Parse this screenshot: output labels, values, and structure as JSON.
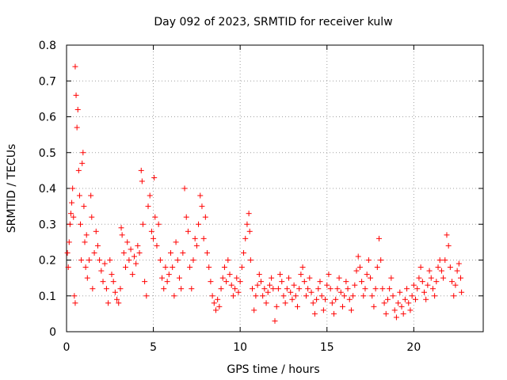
{
  "chart_data": {
    "type": "scatter",
    "title": "Day 092 of 2023, SRMTID for receiver kulw",
    "xlabel": "GPS time / hours",
    "ylabel": "SRMTID / TECUs",
    "xlim": [
      0,
      24
    ],
    "ylim": [
      0,
      0.8
    ],
    "xticks": [
      0,
      5,
      10,
      15,
      20
    ],
    "xtick_labels": [
      "0",
      "5",
      "10",
      "15",
      "20"
    ],
    "yticks": [
      0,
      0.1,
      0.2,
      0.3,
      0.4,
      0.5,
      0.6,
      0.7,
      0.8
    ],
    "ytick_labels": [
      "0",
      "0.1",
      "0.2",
      "0.3",
      "0.4",
      "0.5",
      "0.6",
      "0.7",
      "0.8"
    ],
    "grid": true,
    "marker": "+",
    "color": "#ff0000",
    "series": [
      {
        "name": "SRMTID",
        "points": [
          [
            0.05,
            0.22
          ],
          [
            0.1,
            0.18
          ],
          [
            0.15,
            0.25
          ],
          [
            0.2,
            0.3
          ],
          [
            0.25,
            0.33
          ],
          [
            0.3,
            0.36
          ],
          [
            0.35,
            0.4
          ],
          [
            0.4,
            0.32
          ],
          [
            0.45,
            0.1
          ],
          [
            0.5,
            0.08
          ],
          [
            0.5,
            0.74
          ],
          [
            0.55,
            0.66
          ],
          [
            0.6,
            0.57
          ],
          [
            0.65,
            0.62
          ],
          [
            0.7,
            0.45
          ],
          [
            0.75,
            0.38
          ],
          [
            0.8,
            0.3
          ],
          [
            0.85,
            0.2
          ],
          [
            0.9,
            0.47
          ],
          [
            0.95,
            0.5
          ],
          [
            1.0,
            0.35
          ],
          [
            1.05,
            0.25
          ],
          [
            1.1,
            0.18
          ],
          [
            1.15,
            0.27
          ],
          [
            1.2,
            0.15
          ],
          [
            1.3,
            0.2
          ],
          [
            1.4,
            0.38
          ],
          [
            1.45,
            0.32
          ],
          [
            1.5,
            0.12
          ],
          [
            1.6,
            0.22
          ],
          [
            1.7,
            0.28
          ],
          [
            1.8,
            0.24
          ],
          [
            1.9,
            0.2
          ],
          [
            2.0,
            0.17
          ],
          [
            2.1,
            0.14
          ],
          [
            2.2,
            0.19
          ],
          [
            2.3,
            0.12
          ],
          [
            2.4,
            0.08
          ],
          [
            2.5,
            0.2
          ],
          [
            2.6,
            0.16
          ],
          [
            2.7,
            0.14
          ],
          [
            2.8,
            0.11
          ],
          [
            2.9,
            0.09
          ],
          [
            3.0,
            0.08
          ],
          [
            3.1,
            0.12
          ],
          [
            3.15,
            0.29
          ],
          [
            3.2,
            0.27
          ],
          [
            3.3,
            0.22
          ],
          [
            3.4,
            0.18
          ],
          [
            3.5,
            0.25
          ],
          [
            3.6,
            0.2
          ],
          [
            3.7,
            0.23
          ],
          [
            3.8,
            0.16
          ],
          [
            3.9,
            0.21
          ],
          [
            4.0,
            0.19
          ],
          [
            4.1,
            0.24
          ],
          [
            4.2,
            0.22
          ],
          [
            4.3,
            0.45
          ],
          [
            4.35,
            0.42
          ],
          [
            4.4,
            0.3
          ],
          [
            4.5,
            0.14
          ],
          [
            4.6,
            0.1
          ],
          [
            4.7,
            0.35
          ],
          [
            4.8,
            0.38
          ],
          [
            4.9,
            0.28
          ],
          [
            5.0,
            0.26
          ],
          [
            5.05,
            0.43
          ],
          [
            5.1,
            0.32
          ],
          [
            5.2,
            0.24
          ],
          [
            5.3,
            0.3
          ],
          [
            5.4,
            0.2
          ],
          [
            5.5,
            0.15
          ],
          [
            5.6,
            0.12
          ],
          [
            5.7,
            0.18
          ],
          [
            5.8,
            0.14
          ],
          [
            5.9,
            0.16
          ],
          [
            6.0,
            0.22
          ],
          [
            6.1,
            0.18
          ],
          [
            6.2,
            0.1
          ],
          [
            6.3,
            0.25
          ],
          [
            6.4,
            0.2
          ],
          [
            6.5,
            0.15
          ],
          [
            6.6,
            0.12
          ],
          [
            6.7,
            0.22
          ],
          [
            6.8,
            0.4
          ],
          [
            6.9,
            0.32
          ],
          [
            7.0,
            0.28
          ],
          [
            7.1,
            0.18
          ],
          [
            7.2,
            0.12
          ],
          [
            7.3,
            0.2
          ],
          [
            7.4,
            0.26
          ],
          [
            7.5,
            0.24
          ],
          [
            7.6,
            0.3
          ],
          [
            7.7,
            0.38
          ],
          [
            7.8,
            0.35
          ],
          [
            7.9,
            0.26
          ],
          [
            8.0,
            0.32
          ],
          [
            8.1,
            0.22
          ],
          [
            8.2,
            0.18
          ],
          [
            8.3,
            0.14
          ],
          [
            8.4,
            0.1
          ],
          [
            8.5,
            0.08
          ],
          [
            8.6,
            0.06
          ],
          [
            8.7,
            0.09
          ],
          [
            8.8,
            0.07
          ],
          [
            8.9,
            0.12
          ],
          [
            9.0,
            0.15
          ],
          [
            9.1,
            0.18
          ],
          [
            9.2,
            0.14
          ],
          [
            9.3,
            0.2
          ],
          [
            9.4,
            0.16
          ],
          [
            9.5,
            0.13
          ],
          [
            9.6,
            0.1
          ],
          [
            9.7,
            0.12
          ],
          [
            9.8,
            0.15
          ],
          [
            9.9,
            0.11
          ],
          [
            10.0,
            0.14
          ],
          [
            10.1,
            0.18
          ],
          [
            10.2,
            0.22
          ],
          [
            10.3,
            0.26
          ],
          [
            10.4,
            0.3
          ],
          [
            10.5,
            0.33
          ],
          [
            10.55,
            0.28
          ],
          [
            10.6,
            0.2
          ],
          [
            10.7,
            0.12
          ],
          [
            10.8,
            0.06
          ],
          [
            10.9,
            0.1
          ],
          [
            11.0,
            0.13
          ],
          [
            11.1,
            0.16
          ],
          [
            11.2,
            0.14
          ],
          [
            11.3,
            0.1
          ],
          [
            11.4,
            0.12
          ],
          [
            11.5,
            0.08
          ],
          [
            11.6,
            0.11
          ],
          [
            11.7,
            0.13
          ],
          [
            11.8,
            0.15
          ],
          [
            11.9,
            0.12
          ],
          [
            12.0,
            0.03
          ],
          [
            12.1,
            0.07
          ],
          [
            12.2,
            0.12
          ],
          [
            12.3,
            0.16
          ],
          [
            12.4,
            0.14
          ],
          [
            12.5,
            0.1
          ],
          [
            12.6,
            0.08
          ],
          [
            12.7,
            0.12
          ],
          [
            12.8,
            0.15
          ],
          [
            12.9,
            0.11
          ],
          [
            13.0,
            0.09
          ],
          [
            13.1,
            0.13
          ],
          [
            13.2,
            0.1
          ],
          [
            13.3,
            0.07
          ],
          [
            13.4,
            0.12
          ],
          [
            13.5,
            0.16
          ],
          [
            13.6,
            0.18
          ],
          [
            13.7,
            0.14
          ],
          [
            13.8,
            0.1
          ],
          [
            13.9,
            0.12
          ],
          [
            14.0,
            0.15
          ],
          [
            14.1,
            0.11
          ],
          [
            14.2,
            0.08
          ],
          [
            14.3,
            0.05
          ],
          [
            14.4,
            0.09
          ],
          [
            14.5,
            0.12
          ],
          [
            14.6,
            0.14
          ],
          [
            14.7,
            0.1
          ],
          [
            14.8,
            0.06
          ],
          [
            14.9,
            0.09
          ],
          [
            15.0,
            0.13
          ],
          [
            15.1,
            0.16
          ],
          [
            15.2,
            0.12
          ],
          [
            15.3,
            0.08
          ],
          [
            15.4,
            0.05
          ],
          [
            15.5,
            0.09
          ],
          [
            15.6,
            0.12
          ],
          [
            15.7,
            0.15
          ],
          [
            15.8,
            0.11
          ],
          [
            15.9,
            0.07
          ],
          [
            16.0,
            0.1
          ],
          [
            16.1,
            0.14
          ],
          [
            16.2,
            0.12
          ],
          [
            16.3,
            0.09
          ],
          [
            16.4,
            0.06
          ],
          [
            16.5,
            0.1
          ],
          [
            16.6,
            0.13
          ],
          [
            16.7,
            0.17
          ],
          [
            16.8,
            0.21
          ],
          [
            16.9,
            0.18
          ],
          [
            17.0,
            0.14
          ],
          [
            17.1,
            0.1
          ],
          [
            17.2,
            0.12
          ],
          [
            17.3,
            0.16
          ],
          [
            17.4,
            0.2
          ],
          [
            17.5,
            0.15
          ],
          [
            17.6,
            0.1
          ],
          [
            17.7,
            0.07
          ],
          [
            17.8,
            0.12
          ],
          [
            17.9,
            0.18
          ],
          [
            18.0,
            0.26
          ],
          [
            18.1,
            0.2
          ],
          [
            18.2,
            0.12
          ],
          [
            18.3,
            0.08
          ],
          [
            18.4,
            0.05
          ],
          [
            18.5,
            0.09
          ],
          [
            18.6,
            0.12
          ],
          [
            18.7,
            0.15
          ],
          [
            18.8,
            0.1
          ],
          [
            18.9,
            0.06
          ],
          [
            19.0,
            0.04
          ],
          [
            19.1,
            0.08
          ],
          [
            19.2,
            0.11
          ],
          [
            19.3,
            0.07
          ],
          [
            19.4,
            0.05
          ],
          [
            19.5,
            0.09
          ],
          [
            19.6,
            0.12
          ],
          [
            19.7,
            0.08
          ],
          [
            19.8,
            0.06
          ],
          [
            19.9,
            0.1
          ],
          [
            20.0,
            0.13
          ],
          [
            20.1,
            0.09
          ],
          [
            20.2,
            0.12
          ],
          [
            20.3,
            0.15
          ],
          [
            20.4,
            0.18
          ],
          [
            20.5,
            0.14
          ],
          [
            20.6,
            0.11
          ],
          [
            20.7,
            0.09
          ],
          [
            20.8,
            0.13
          ],
          [
            20.9,
            0.17
          ],
          [
            21.0,
            0.15
          ],
          [
            21.1,
            0.12
          ],
          [
            21.2,
            0.1
          ],
          [
            21.3,
            0.14
          ],
          [
            21.4,
            0.18
          ],
          [
            21.5,
            0.2
          ],
          [
            21.6,
            0.17
          ],
          [
            21.7,
            0.15
          ],
          [
            21.8,
            0.2
          ],
          [
            21.9,
            0.27
          ],
          [
            22.0,
            0.24
          ],
          [
            22.1,
            0.18
          ],
          [
            22.2,
            0.14
          ],
          [
            22.3,
            0.1
          ],
          [
            22.4,
            0.13
          ],
          [
            22.5,
            0.17
          ],
          [
            22.6,
            0.19
          ],
          [
            22.7,
            0.15
          ],
          [
            22.75,
            0.11
          ]
        ]
      }
    ]
  }
}
